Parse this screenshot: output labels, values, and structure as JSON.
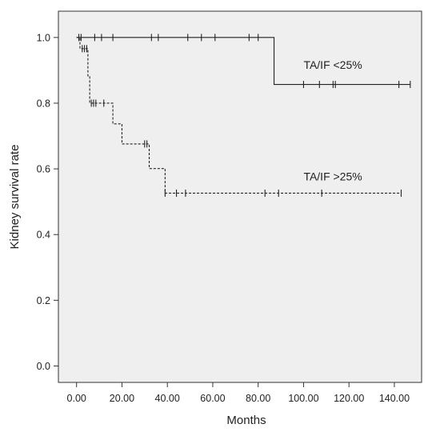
{
  "chart_data": {
    "type": "line",
    "subtype": "kaplan-meier step curves",
    "title": "",
    "xlabel": "Months",
    "ylabel": "Kidney survival rate",
    "xlim": [
      -8,
      152
    ],
    "ylim": [
      -0.05,
      1.08
    ],
    "x_ticks": [
      0,
      20,
      40,
      60,
      80,
      100,
      120,
      140
    ],
    "x_tick_labels": [
      "0.00",
      "20.00",
      "40.00",
      "60.00",
      "80.00",
      "100.00",
      "120.00",
      "140.00"
    ],
    "y_ticks": [
      0,
      0.2,
      0.4,
      0.6,
      0.8,
      1.0
    ],
    "y_tick_labels": [
      "0.0",
      "0.2",
      "0.4",
      "0.6",
      "0.8",
      "1.0"
    ],
    "grid": false,
    "legend": "none (series labeled inline)",
    "plot_background": "#efefef",
    "line_color": "#222222",
    "series": [
      {
        "name": "TA/IF <25%",
        "line_style": "solid",
        "steps": [
          [
            0,
            1.0
          ],
          [
            87,
            0.857
          ],
          [
            147,
            0.857
          ]
        ],
        "censored": [
          [
            1,
            1.0
          ],
          [
            2,
            1.0
          ],
          [
            8,
            1.0
          ],
          [
            11,
            1.0
          ],
          [
            16,
            1.0
          ],
          [
            33,
            1.0
          ],
          [
            36,
            1.0
          ],
          [
            49,
            1.0
          ],
          [
            55,
            1.0
          ],
          [
            61,
            1.0
          ],
          [
            76,
            1.0
          ],
          [
            80,
            1.0
          ],
          [
            100,
            0.857
          ],
          [
            107,
            0.857
          ],
          [
            113,
            0.857
          ],
          [
            114,
            0.857
          ],
          [
            142,
            0.857
          ],
          [
            147,
            0.857
          ]
        ]
      },
      {
        "name": "TA/IF >25%",
        "line_style": "dashed",
        "steps": [
          [
            0,
            1.0
          ],
          [
            1.5,
            0.966
          ],
          [
            5,
            0.883
          ],
          [
            5.8,
            0.8
          ],
          [
            16,
            0.737
          ],
          [
            20,
            0.676
          ],
          [
            32,
            0.601
          ],
          [
            39,
            0.526
          ],
          [
            143,
            0.526
          ]
        ],
        "censored": [
          [
            2.5,
            0.966
          ],
          [
            3.5,
            0.966
          ],
          [
            4.5,
            0.966
          ],
          [
            6.5,
            0.8
          ],
          [
            7.5,
            0.8
          ],
          [
            8.5,
            0.8
          ],
          [
            12,
            0.8
          ],
          [
            30,
            0.676
          ],
          [
            31,
            0.676
          ],
          [
            39,
            0.526
          ],
          [
            44,
            0.526
          ],
          [
            48,
            0.526
          ],
          [
            83,
            0.526
          ],
          [
            89,
            0.526
          ],
          [
            108,
            0.526
          ],
          [
            143,
            0.526
          ]
        ]
      }
    ]
  }
}
